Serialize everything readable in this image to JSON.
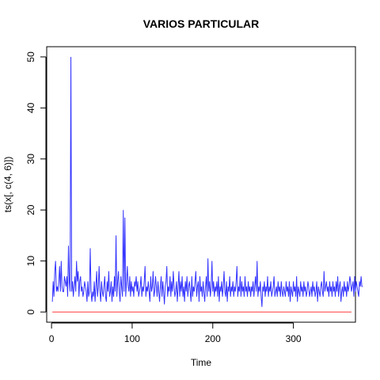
{
  "chart_data": {
    "type": "line",
    "title": "VARIOS PARTICULAR",
    "xlabel": "Time",
    "ylabel": "ts(x[, c(4, 6)])",
    "xlim": [
      -6,
      377
    ],
    "ylim": [
      -2,
      52
    ],
    "x_ticks": [
      0,
      100,
      200,
      300
    ],
    "y_ticks": [
      0,
      10,
      20,
      30,
      40,
      50
    ],
    "grid": false,
    "legend": "none",
    "x_start": 1,
    "series": [
      {
        "color": "#3333ff",
        "values": [
          2,
          6,
          3,
          8,
          10,
          4,
          5,
          4,
          6,
          9,
          4,
          10,
          5,
          4,
          4,
          7,
          6,
          5,
          7,
          3,
          13,
          6,
          4,
          50,
          4,
          6,
          3,
          5,
          7,
          4,
          10,
          6,
          8,
          3,
          6,
          7,
          4,
          5,
          3,
          4,
          6,
          5,
          4,
          2,
          6,
          3,
          4,
          12.5,
          4,
          2,
          4,
          3,
          6,
          2,
          5,
          8,
          3,
          5,
          9,
          4,
          2,
          6,
          4,
          3,
          5,
          7,
          3,
          2,
          6,
          4,
          8,
          3,
          4,
          6,
          2,
          5,
          3,
          7,
          4,
          15,
          3,
          6,
          8,
          4,
          2,
          7,
          5,
          3,
          20,
          4,
          18.5,
          3,
          6,
          9,
          5,
          4,
          7,
          3,
          6,
          4,
          5,
          3,
          6,
          5,
          7,
          4,
          6,
          3,
          4,
          5,
          7,
          3,
          5,
          4,
          6,
          9,
          3,
          5,
          4,
          6,
          4,
          2,
          7,
          4,
          5,
          8,
          3,
          4,
          7,
          5,
          3,
          6,
          4,
          2,
          5,
          7,
          3,
          6,
          4,
          1.5,
          5,
          6,
          9,
          3,
          5,
          4,
          7,
          3,
          6,
          4,
          8,
          5,
          3,
          4,
          6,
          2,
          5,
          8,
          3,
          6,
          4,
          7,
          3,
          5,
          2,
          6,
          4,
          7,
          3,
          5,
          6,
          4,
          2,
          7,
          3,
          5,
          4,
          6,
          8,
          3,
          5,
          6,
          2,
          7,
          4,
          5,
          3,
          6,
          4,
          2,
          5,
          7,
          3,
          10.5,
          4,
          6,
          3,
          5,
          10,
          4,
          6,
          3,
          5,
          4,
          6,
          3,
          7,
          2,
          5,
          4,
          6,
          3,
          5,
          8,
          4,
          3,
          6,
          2,
          5,
          4,
          7,
          3,
          5,
          4,
          6,
          3,
          5,
          4,
          6,
          9,
          3,
          5,
          4,
          7,
          3,
          6,
          4,
          5,
          3,
          7,
          4,
          5,
          3,
          6,
          4,
          5,
          3,
          5,
          4,
          6,
          3,
          5,
          7,
          4,
          10,
          3,
          5,
          4,
          6,
          3,
          1,
          5,
          4,
          6,
          3,
          5,
          4,
          7,
          3,
          5,
          4,
          6,
          3,
          4,
          5,
          7,
          3,
          4,
          5,
          3,
          6,
          4,
          5,
          3,
          6,
          4,
          3,
          5,
          4,
          3,
          6,
          4,
          5,
          3,
          6,
          2,
          5,
          4,
          3,
          6,
          4,
          5,
          3,
          7,
          2,
          5,
          4,
          3,
          6,
          4,
          5,
          3,
          6,
          4,
          5,
          3,
          4,
          6,
          5,
          3,
          4,
          5,
          3,
          6,
          4,
          5,
          3,
          4,
          6,
          2,
          5,
          4,
          3,
          5,
          6,
          4,
          3,
          8,
          4,
          5,
          6,
          4,
          5,
          3,
          6,
          4,
          5,
          3,
          6,
          4,
          5,
          3,
          6,
          4,
          7,
          3,
          5,
          6,
          2,
          4,
          5,
          3,
          6,
          4,
          5,
          3,
          6,
          4,
          5,
          7,
          6,
          4,
          5,
          6,
          3,
          7,
          4,
          6,
          5,
          4,
          3,
          6,
          5,
          7,
          5,
          5
        ]
      },
      {
        "color": "#ff3333",
        "values_constant": 0,
        "length": 372
      }
    ]
  }
}
